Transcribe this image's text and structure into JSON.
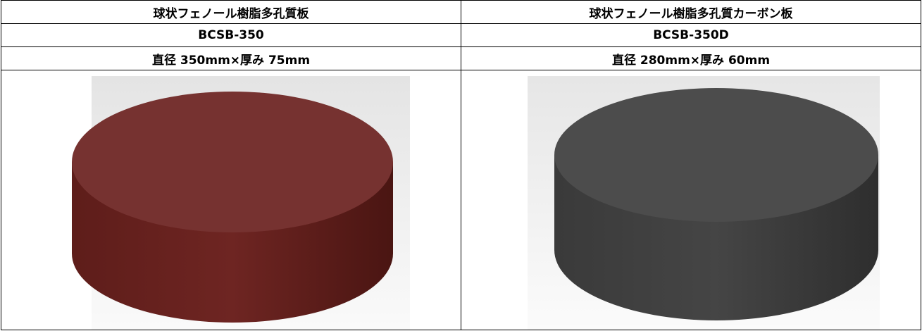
{
  "table": {
    "rows": [
      [
        "球状フェノール樹脂多孔質板",
        "球状フェノール樹脂多孔質カーボン板"
      ],
      [
        "BCSB-350",
        "BCSB-350D"
      ],
      [
        "直径 350mm×厚み 75mm",
        "直径 280mm×厚み 60mm"
      ]
    ]
  }
}
